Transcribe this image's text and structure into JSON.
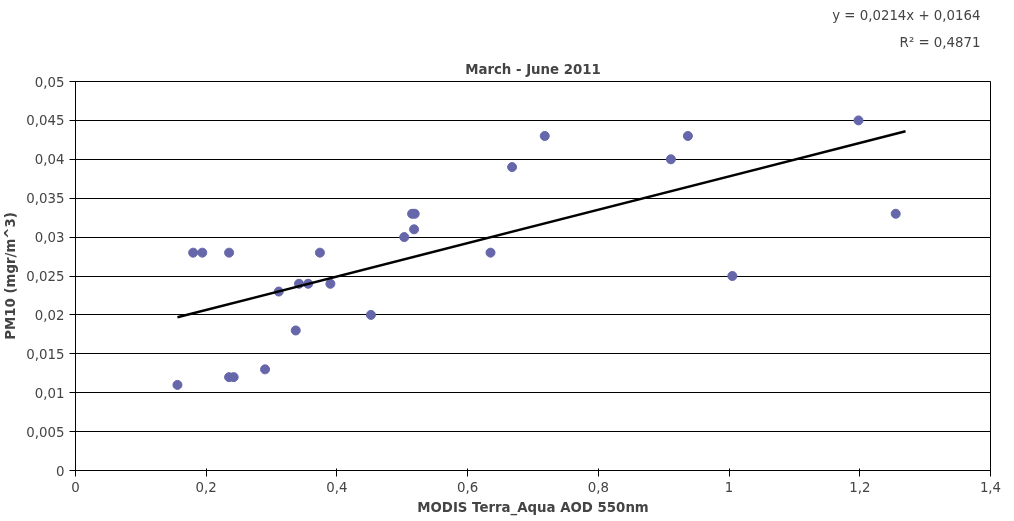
{
  "chart_data": {
    "type": "scatter",
    "title": "March - June 2011",
    "xlabel": "MODIS Terra_Aqua AOD 550nm",
    "ylabel": "PM10 (mgr/m^3)",
    "annotations": [
      "y = 0,0214x + 0,0164",
      "R² = 0,4871"
    ],
    "xlim": [
      0,
      1.4
    ],
    "xticks": [
      {
        "value": 0,
        "label": "0"
      },
      {
        "value": 0.2,
        "label": "0,2"
      },
      {
        "value": 0.4,
        "label": "0,4"
      },
      {
        "value": 0.6,
        "label": "0,6"
      },
      {
        "value": 0.8,
        "label": "0,8"
      },
      {
        "value": 1,
        "label": "1"
      },
      {
        "value": 1.2,
        "label": "1,2"
      },
      {
        "value": 1.4,
        "label": "1,4"
      }
    ],
    "ylim": [
      0,
      0.05
    ],
    "yticks": [
      {
        "value": 0,
        "label": "0"
      },
      {
        "value": 0.005,
        "label": "0,005"
      },
      {
        "value": 0.01,
        "label": "0,01"
      },
      {
        "value": 0.015,
        "label": "0,015"
      },
      {
        "value": 0.02,
        "label": "0,02"
      },
      {
        "value": 0.025,
        "label": "0,025"
      },
      {
        "value": 0.03,
        "label": "0,03"
      },
      {
        "value": 0.035,
        "label": "0,035"
      },
      {
        "value": 0.04,
        "label": "0,04"
      },
      {
        "value": 0.045,
        "label": "0,045"
      },
      {
        "value": 0.05,
        "label": "0,05"
      }
    ],
    "grid": "y",
    "series": [
      {
        "marker": "circle",
        "color": "#6666aa",
        "x": [
          0.156,
          0.18,
          0.194,
          0.235,
          0.235,
          0.242,
          0.29,
          0.311,
          0.337,
          0.342,
          0.356,
          0.374,
          0.39,
          0.452,
          0.503,
          0.515,
          0.519,
          0.518,
          0.635,
          0.668,
          0.718,
          0.911,
          0.937,
          1.005,
          1.198,
          1.255
        ],
        "values": [
          0.011,
          0.028,
          0.028,
          0.028,
          0.012,
          0.012,
          0.013,
          0.023,
          0.018,
          0.024,
          0.024,
          0.028,
          0.024,
          0.02,
          0.03,
          0.033,
          0.033,
          0.031,
          0.028,
          0.039,
          0.043,
          0.04,
          0.043,
          0.025,
          0.045,
          0.033
        ]
      },
      {
        "type": "line",
        "color": "#000000",
        "x": [
          0.156,
          1.27
        ],
        "values": [
          0.0197,
          0.0436
        ]
      }
    ]
  }
}
